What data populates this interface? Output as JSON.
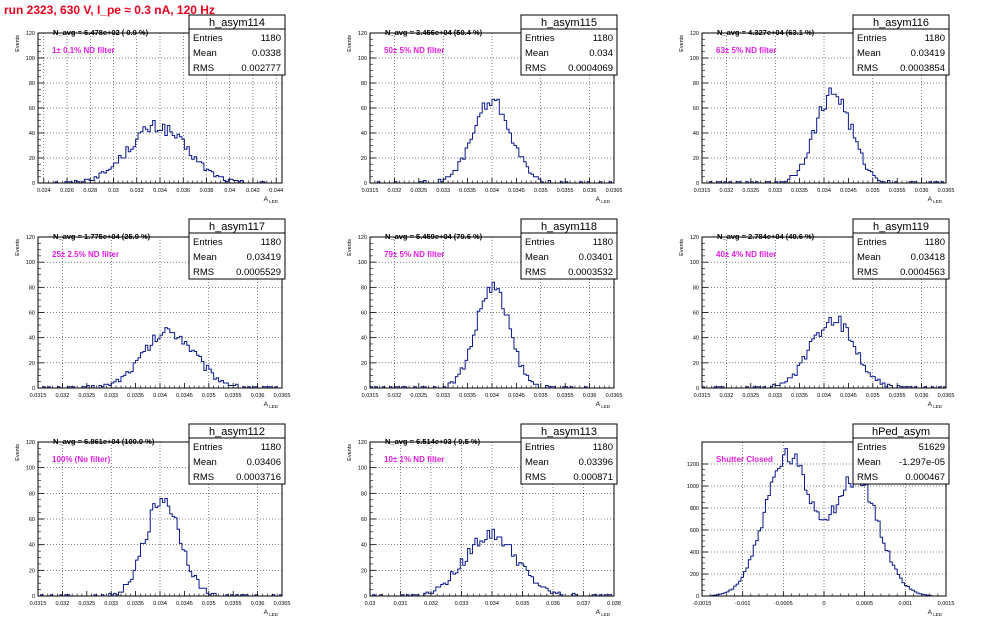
{
  "page": {
    "title": "run 2323,   630 V, I_pe ≈ 0.3 nA, 120 Hz"
  },
  "style": {
    "hist_color": "#0a1a8c",
    "annotation_color": "#e020e0",
    "title_color": "#e8001c",
    "grid": true,
    "grid_style": "dotted"
  },
  "chart_data": [
    {
      "type": "histogram",
      "name": "h_asym114",
      "stats": [
        [
          "Entries",
          "1180"
        ],
        [
          "Mean",
          "0.0338"
        ],
        [
          "RMS",
          "0.002777"
        ]
      ],
      "annotation": "N_avg = 6.478e+02 ( 0.9 %)",
      "filter": "1± 0.1% ND filter",
      "xlabel": "A_LED",
      "ylabel": "Events",
      "xlim": [
        0.0235,
        0.0445
      ],
      "ylim": [
        0,
        120
      ],
      "xticks": [
        0.024,
        0.026,
        0.028,
        0.03,
        0.032,
        0.034,
        0.036,
        0.038,
        0.04,
        0.042,
        0.044
      ],
      "xticklabels": [
        "0.024",
        "0.026",
        "0.028",
        "0.03",
        "0.032",
        "0.034",
        "0.036",
        "0.038",
        "0.04",
        "0.042",
        "0.044"
      ],
      "yticks": [
        0,
        20,
        40,
        60,
        80,
        100,
        120
      ],
      "yticklabels": [
        "0",
        "20",
        "40",
        "60",
        "80",
        "100",
        "120"
      ],
      "grid_x": [
        0.024,
        0.026,
        0.028,
        0.03,
        0.032,
        0.034,
        0.036,
        0.038,
        0.04,
        0.042,
        0.044
      ],
      "mean": 0.0338,
      "sigma": 0.0025,
      "ymax": 45,
      "nbins": 100,
      "entries": 1180
    },
    {
      "type": "histogram",
      "name": "h_asym115",
      "stats": [
        [
          "Entries",
          "1180"
        ],
        [
          "Mean",
          "0.034"
        ],
        [
          "RMS",
          "0.0004069"
        ]
      ],
      "annotation": "N_avg = 3.456e+04 (50.4 %)",
      "filter": "50± 5% ND filter",
      "xlabel": "A_LED",
      "ylabel": "Events",
      "xlim": [
        0.0315,
        0.0365
      ],
      "ylim": [
        0,
        120
      ],
      "xticks": [
        0.0315,
        0.032,
        0.0325,
        0.033,
        0.0335,
        0.034,
        0.0345,
        0.035,
        0.0355,
        0.036,
        0.0365
      ],
      "xticklabels": [
        "0.0315",
        "0.032",
        "0.0325",
        "0.033",
        "0.0335",
        "0.034",
        "0.0345",
        "0.035",
        "0.0355",
        "0.036",
        "0.0365"
      ],
      "yticks": [
        0,
        20,
        40,
        60,
        80,
        100,
        120
      ],
      "yticklabels": [
        "0",
        "20",
        "40",
        "60",
        "80",
        "100",
        "120"
      ],
      "grid_x": [
        0.032,
        0.033,
        0.034,
        0.035,
        0.036
      ],
      "mean": 0.034,
      "sigma": 0.00039,
      "ymax": 65,
      "nbins": 100,
      "entries": 1180
    },
    {
      "type": "histogram",
      "name": "h_asym116",
      "stats": [
        [
          "Entries",
          "1180"
        ],
        [
          "Mean",
          "0.03419"
        ],
        [
          "RMS",
          "0.0003854"
        ]
      ],
      "annotation": "N_avg = 4.327e+04 (63.1 %)",
      "filter": "63± 5% ND filter",
      "xlabel": "A_LED",
      "ylabel": "Events",
      "xlim": [
        0.0315,
        0.0365
      ],
      "ylim": [
        0,
        120
      ],
      "xticks": [
        0.0315,
        0.032,
        0.0325,
        0.033,
        0.0335,
        0.034,
        0.0345,
        0.035,
        0.0355,
        0.036,
        0.0365
      ],
      "xticklabels": [
        "0.0315",
        "0.032",
        "0.0325",
        "0.033",
        "0.0335",
        "0.034",
        "0.0345",
        "0.035",
        "0.0355",
        "0.036",
        "0.0365"
      ],
      "yticks": [
        0,
        20,
        40,
        60,
        80,
        100,
        120
      ],
      "yticklabels": [
        "0",
        "20",
        "40",
        "60",
        "80",
        "100",
        "120"
      ],
      "grid_x": [
        0.032,
        0.033,
        0.034,
        0.035,
        0.036
      ],
      "mean": 0.03419,
      "sigma": 0.00037,
      "ymax": 72,
      "nbins": 100,
      "entries": 1180
    },
    {
      "type": "histogram",
      "name": "h_asym117",
      "stats": [
        [
          "Entries",
          "1180"
        ],
        [
          "Mean",
          "0.03419"
        ],
        [
          "RMS",
          "0.0005529"
        ]
      ],
      "annotation": "N_avg = 1.775e+04 (25.9 %)",
      "filter": "25± 2.5% ND filter",
      "xlabel": "A_LED",
      "ylabel": "Events",
      "xlim": [
        0.0315,
        0.0365
      ],
      "ylim": [
        0,
        120
      ],
      "xticks": [
        0.0315,
        0.032,
        0.0325,
        0.033,
        0.0335,
        0.034,
        0.0345,
        0.035,
        0.0355,
        0.036,
        0.0365
      ],
      "xticklabels": [
        "0.0315",
        "0.032",
        "0.0325",
        "0.033",
        "0.0335",
        "0.034",
        "0.0345",
        "0.035",
        "0.0355",
        "0.036",
        "0.0365"
      ],
      "yticks": [
        0,
        20,
        40,
        60,
        80,
        100,
        120
      ],
      "yticklabels": [
        "0",
        "20",
        "40",
        "60",
        "80",
        "100",
        "120"
      ],
      "grid_x": [
        0.032,
        0.033,
        0.034,
        0.035,
        0.036
      ],
      "mean": 0.03419,
      "sigma": 0.00053,
      "ymax": 45,
      "nbins": 100,
      "entries": 1180
    },
    {
      "type": "histogram",
      "name": "h_asym118",
      "stats": [
        [
          "Entries",
          "1180"
        ],
        [
          "Mean",
          "0.03401"
        ],
        [
          "RMS",
          "0.0003532"
        ]
      ],
      "annotation": "N_avg = 5.459e+04 (79.6 %)",
      "filter": "79± 5% ND filter",
      "xlabel": "A_LED",
      "ylabel": "Events",
      "xlim": [
        0.0315,
        0.0365
      ],
      "ylim": [
        0,
        120
      ],
      "xticks": [
        0.0315,
        0.032,
        0.0325,
        0.033,
        0.0335,
        0.034,
        0.0345,
        0.035,
        0.0355,
        0.036,
        0.0365
      ],
      "xticklabels": [
        "0.0315",
        "0.032",
        "0.0325",
        "0.033",
        "0.0335",
        "0.034",
        "0.0345",
        "0.035",
        "0.0355",
        "0.036",
        "0.0365"
      ],
      "yticks": [
        0,
        20,
        40,
        60,
        80,
        100,
        120
      ],
      "yticklabels": [
        "0",
        "20",
        "40",
        "60",
        "80",
        "100",
        "120"
      ],
      "grid_x": [
        0.032,
        0.033,
        0.034,
        0.035,
        0.036
      ],
      "mean": 0.03401,
      "sigma": 0.00034,
      "ymax": 80,
      "nbins": 100,
      "entries": 1180
    },
    {
      "type": "histogram",
      "name": "h_asym119",
      "stats": [
        [
          "Entries",
          "1180"
        ],
        [
          "Mean",
          "0.03418"
        ],
        [
          "RMS",
          "0.0004563"
        ]
      ],
      "annotation": "N_avg = 2.784e+04 (40.6 %)",
      "filter": "40± 4% ND filter",
      "xlabel": "A_LED",
      "ylabel": "Events",
      "xlim": [
        0.0315,
        0.0365
      ],
      "ylim": [
        0,
        120
      ],
      "xticks": [
        0.0315,
        0.032,
        0.0325,
        0.033,
        0.0335,
        0.034,
        0.0345,
        0.035,
        0.0355,
        0.036,
        0.0365
      ],
      "xticklabels": [
        "0.0315",
        "0.032",
        "0.0325",
        "0.033",
        "0.0335",
        "0.034",
        "0.0345",
        "0.035",
        "0.0355",
        "0.036",
        "0.0365"
      ],
      "yticks": [
        0,
        20,
        40,
        60,
        80,
        100,
        120
      ],
      "yticklabels": [
        "0",
        "20",
        "40",
        "60",
        "80",
        "100",
        "120"
      ],
      "grid_x": [
        0.032,
        0.033,
        0.034,
        0.035,
        0.036
      ],
      "mean": 0.03418,
      "sigma": 0.00044,
      "ymax": 55,
      "nbins": 100,
      "entries": 1180
    },
    {
      "type": "histogram",
      "name": "h_asym112",
      "stats": [
        [
          "Entries",
          "1180"
        ],
        [
          "Mean",
          "0.03406"
        ],
        [
          "RMS",
          "0.0003716"
        ]
      ],
      "annotation": "N_avg = 6.861e+04 (100.0 %)",
      "filter": "100% (No filter)",
      "xlabel": "A_LED",
      "ylabel": "Events",
      "xlim": [
        0.0315,
        0.0365
      ],
      "ylim": [
        0,
        120
      ],
      "xticks": [
        0.0315,
        0.032,
        0.0325,
        0.033,
        0.0335,
        0.034,
        0.0345,
        0.035,
        0.0355,
        0.036,
        0.0365
      ],
      "xticklabels": [
        "0.0315",
        "0.032",
        "0.0325",
        "0.033",
        "0.0335",
        "0.034",
        "0.0345",
        "0.035",
        "0.0355",
        "0.036",
        "0.0365"
      ],
      "yticks": [
        0,
        20,
        40,
        60,
        80,
        100,
        120
      ],
      "yticklabels": [
        "0",
        "20",
        "40",
        "60",
        "80",
        "100",
        "120"
      ],
      "grid_x": [
        0.032,
        0.033,
        0.034,
        0.035,
        0.036
      ],
      "mean": 0.03406,
      "sigma": 0.00036,
      "ymax": 76,
      "nbins": 100,
      "entries": 1180
    },
    {
      "type": "histogram",
      "name": "h_asym113",
      "stats": [
        [
          "Entries",
          "1180"
        ],
        [
          "Mean",
          "0.03396"
        ],
        [
          "RMS",
          "0.000871"
        ]
      ],
      "annotation": "N_avg = 6.514e+03 ( 9.5 %)",
      "filter": "10± 1% ND filter",
      "xlabel": "A_LED",
      "ylabel": "Events",
      "xlim": [
        0.03,
        0.038
      ],
      "ylim": [
        0,
        120
      ],
      "xticks": [
        0.03,
        0.031,
        0.032,
        0.033,
        0.034,
        0.035,
        0.036,
        0.037,
        0.038
      ],
      "xticklabels": [
        "0.03",
        "0.031",
        "0.032",
        "0.033",
        "0.034",
        "0.035",
        "0.036",
        "0.037",
        "0.038"
      ],
      "yticks": [
        0,
        20,
        40,
        60,
        80,
        100,
        120
      ],
      "yticklabels": [
        "0",
        "20",
        "40",
        "60",
        "80",
        "100",
        "120"
      ],
      "grid_x": [
        0.03,
        0.031,
        0.032,
        0.033,
        0.034,
        0.035,
        0.036,
        0.037,
        0.038
      ],
      "mean": 0.03396,
      "sigma": 0.00085,
      "ymax": 48,
      "nbins": 100,
      "entries": 1180
    },
    {
      "type": "histogram",
      "name": "hPed_asym",
      "stats": [
        [
          "Entries",
          "51629"
        ],
        [
          "Mean",
          "-1.297e-05"
        ],
        [
          "RMS",
          "0.000467"
        ]
      ],
      "annotation": "",
      "filter": "Shutter Closed",
      "xlabel": "A_LED",
      "ylabel": "",
      "xlim": [
        -0.0015,
        0.0015
      ],
      "ylim": [
        0,
        1400
      ],
      "xticks": [
        -0.0015,
        -0.001,
        -0.0005,
        0,
        0.0005,
        0.001,
        0.0015
      ],
      "xticklabels": [
        "-0.0015",
        "-0.001",
        "-0.0005",
        "0",
        "0.0005",
        "0.001",
        "0.0015"
      ],
      "yticks": [
        0,
        200,
        400,
        600,
        800,
        1000,
        1200
      ],
      "yticklabels": [
        "0",
        "200",
        "400",
        "600",
        "800",
        "1000",
        "1200"
      ],
      "grid_x": [
        -0.0015,
        -0.001,
        -0.0005,
        0,
        0.0005,
        0.001,
        0.0015
      ],
      "bimodal": {
        "peaks": [
          -0.00045,
          0.0004
        ],
        "sigmas": [
          0.00028,
          0.00028
        ],
        "heights": [
          1250,
          1050
        ]
      },
      "nbins": 100,
      "entries": 51629
    }
  ]
}
